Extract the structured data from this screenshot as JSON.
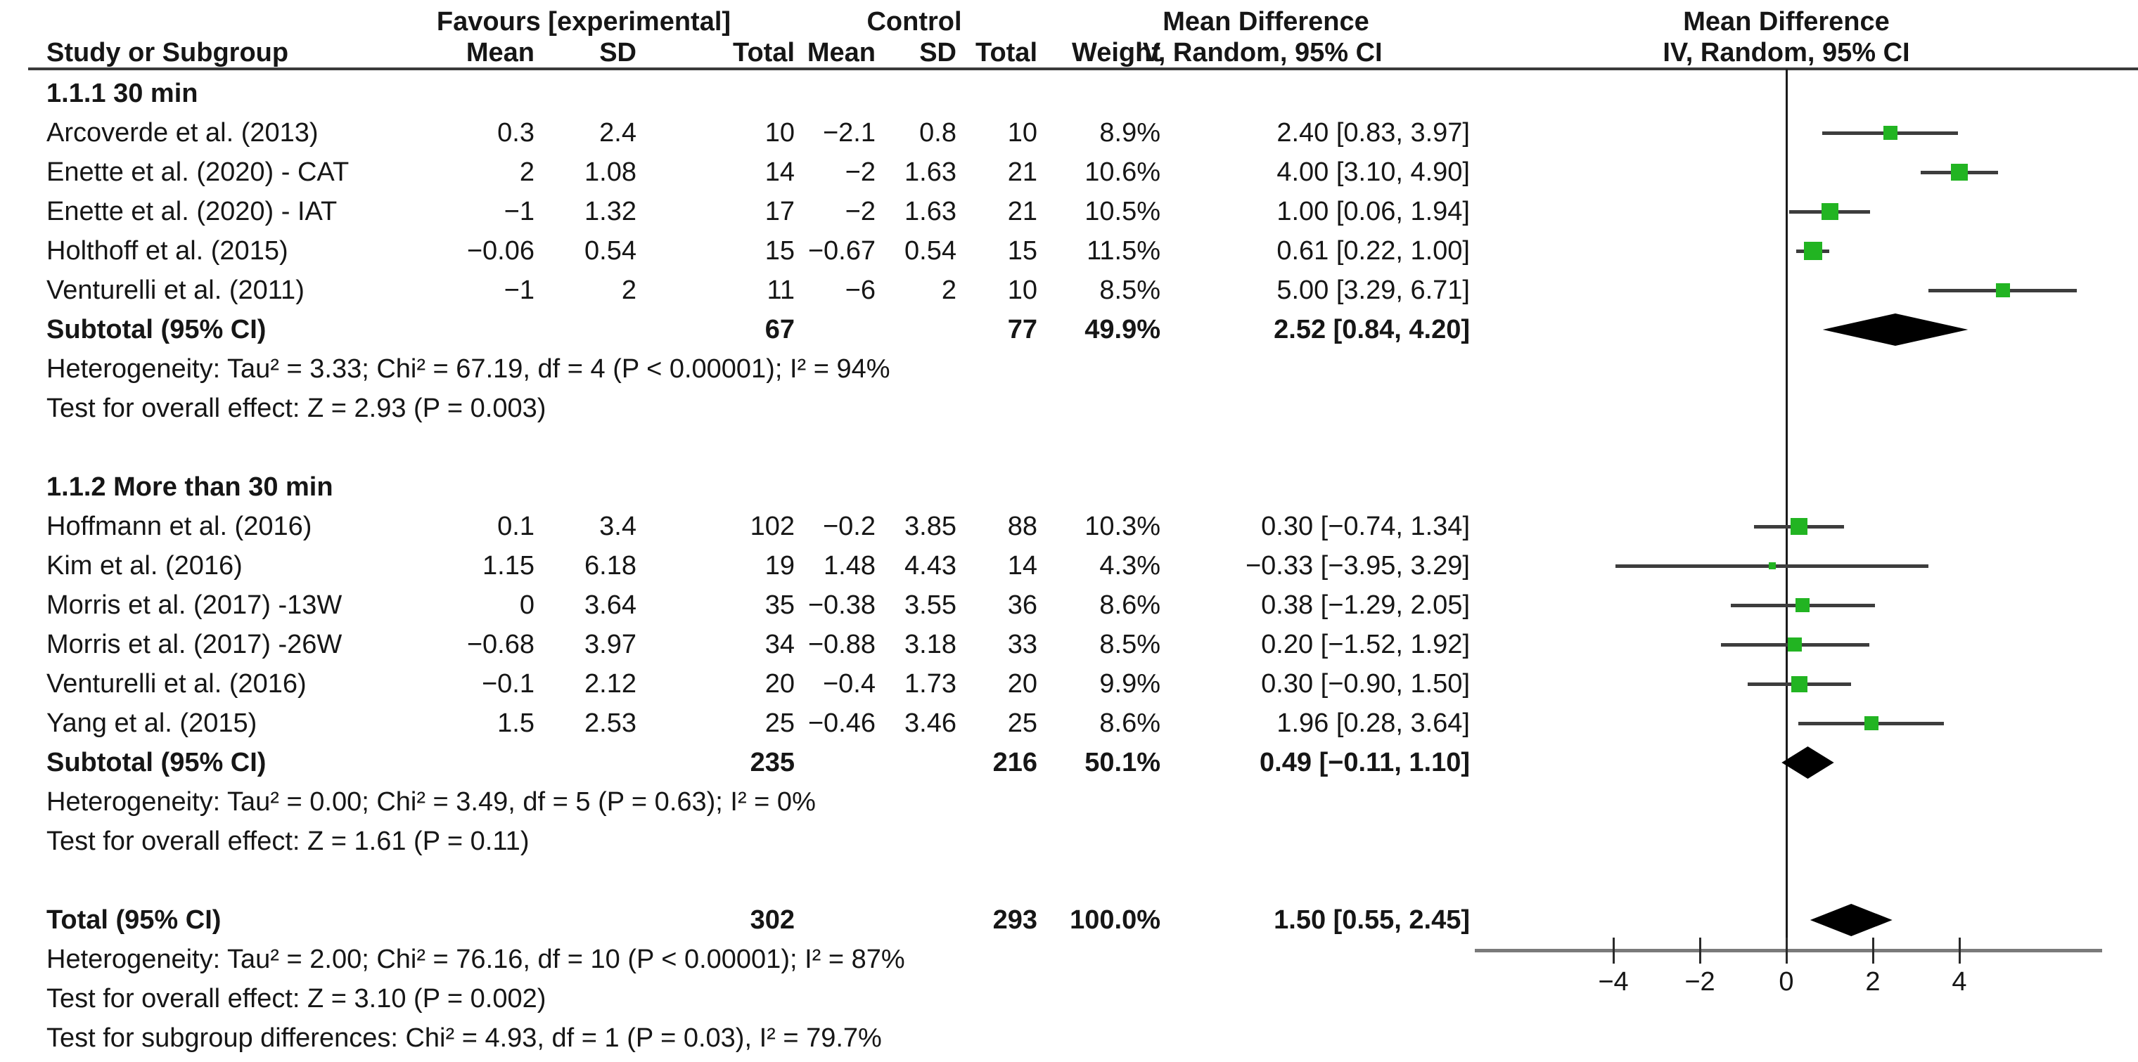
{
  "header": {
    "favours": "Favours [experimental]",
    "control": "Control",
    "md": "Mean Difference",
    "method": "IV, Random, 95% CI",
    "study": "Study or Subgroup",
    "mean": "Mean",
    "sd": "SD",
    "total": "Total",
    "weight": "Weight"
  },
  "chart_data": {
    "type": "scatter",
    "subtype": "forest-plot",
    "effect_measure": "Mean Difference",
    "model": "IV, Random, 95% CI",
    "axis": {
      "min": -7.2,
      "max": 7.3,
      "ticks": [
        -4,
        -2,
        0,
        2,
        4
      ],
      "tick_labels": [
        "−4",
        "−2",
        "0",
        "2",
        "4"
      ]
    },
    "colors": {
      "square": "#22b422",
      "ci_line": "#3d3d3d",
      "diamond": "#000000",
      "zero_line": "#1a1a1a",
      "axis": "#7a7a7a"
    },
    "groups": [
      {
        "title": "1.1.1 30 min",
        "studies": [
          {
            "study": "Arcoverde et al. (2013)",
            "exp_mean": "0.3",
            "exp_sd": "2.4",
            "exp_n": "10",
            "ctl_mean": "−2.1",
            "ctl_sd": "0.8",
            "ctl_n": "10",
            "weight": "8.9%",
            "ci": "2.40 [0.83, 3.97]",
            "est": 2.4,
            "lo": 0.83,
            "hi": 3.97,
            "wt": 8.9
          },
          {
            "study": "Enette et al. (2020) - CAT",
            "exp_mean": "2",
            "exp_sd": "1.08",
            "exp_n": "14",
            "ctl_mean": "−2",
            "ctl_sd": "1.63",
            "ctl_n": "21",
            "weight": "10.6%",
            "ci": "4.00 [3.10, 4.90]",
            "est": 4.0,
            "lo": 3.1,
            "hi": 4.9,
            "wt": 10.6
          },
          {
            "study": "Enette et al. (2020) - IAT",
            "exp_mean": "−1",
            "exp_sd": "1.32",
            "exp_n": "17",
            "ctl_mean": "−2",
            "ctl_sd": "1.63",
            "ctl_n": "21",
            "weight": "10.5%",
            "ci": "1.00 [0.06, 1.94]",
            "est": 1.0,
            "lo": 0.06,
            "hi": 1.94,
            "wt": 10.5
          },
          {
            "study": "Holthoff et al. (2015)",
            "exp_mean": "−0.06",
            "exp_sd": "0.54",
            "exp_n": "15",
            "ctl_mean": "−0.67",
            "ctl_sd": "0.54",
            "ctl_n": "15",
            "weight": "11.5%",
            "ci": "0.61 [0.22, 1.00]",
            "est": 0.61,
            "lo": 0.22,
            "hi": 1.0,
            "wt": 11.5
          },
          {
            "study": "Venturelli et al. (2011)",
            "exp_mean": "−1",
            "exp_sd": "2",
            "exp_n": "11",
            "ctl_mean": "−6",
            "ctl_sd": "2",
            "ctl_n": "10",
            "weight": "8.5%",
            "ci": "5.00 [3.29, 6.71]",
            "est": 5.0,
            "lo": 3.29,
            "hi": 6.71,
            "wt": 8.5
          }
        ],
        "subtotal": {
          "label": "Subtotal (95% CI)",
          "exp_n": "67",
          "ctl_n": "77",
          "weight": "49.9%",
          "ci": "2.52 [0.84, 4.20]",
          "est": 2.52,
          "lo": 0.84,
          "hi": 4.2
        },
        "heterogeneity": "Heterogeneity: Tau² = 3.33; Chi² = 67.19, df = 4 (P < 0.00001); I² = 94%",
        "overall_effect": "Test for overall effect: Z = 2.93 (P = 0.003)"
      },
      {
        "title": "1.1.2 More than 30 min",
        "studies": [
          {
            "study": "Hoffmann et al. (2016)",
            "exp_mean": "0.1",
            "exp_sd": "3.4",
            "exp_n": "102",
            "ctl_mean": "−0.2",
            "ctl_sd": "3.85",
            "ctl_n": "88",
            "weight": "10.3%",
            "ci": "0.30 [−0.74, 1.34]",
            "est": 0.3,
            "lo": -0.74,
            "hi": 1.34,
            "wt": 10.3
          },
          {
            "study": "Kim et al. (2016)",
            "exp_mean": "1.15",
            "exp_sd": "6.18",
            "exp_n": "19",
            "ctl_mean": "1.48",
            "ctl_sd": "4.43",
            "ctl_n": "14",
            "weight": "4.3%",
            "ci": "−0.33 [−3.95, 3.29]",
            "est": -0.33,
            "lo": -3.95,
            "hi": 3.29,
            "wt": 4.3
          },
          {
            "study": "Morris et al. (2017) -13W",
            "exp_mean": "0",
            "exp_sd": "3.64",
            "exp_n": "35",
            "ctl_mean": "−0.38",
            "ctl_sd": "3.55",
            "ctl_n": "36",
            "weight": "8.6%",
            "ci": "0.38 [−1.29, 2.05]",
            "est": 0.38,
            "lo": -1.29,
            "hi": 2.05,
            "wt": 8.6
          },
          {
            "study": "Morris et al. (2017) -26W",
            "exp_mean": "−0.68",
            "exp_sd": "3.97",
            "exp_n": "34",
            "ctl_mean": "−0.88",
            "ctl_sd": "3.18",
            "ctl_n": "33",
            "weight": "8.5%",
            "ci": "0.20 [−1.52, 1.92]",
            "est": 0.2,
            "lo": -1.52,
            "hi": 1.92,
            "wt": 8.5
          },
          {
            "study": "Venturelli et al. (2016)",
            "exp_mean": "−0.1",
            "exp_sd": "2.12",
            "exp_n": "20",
            "ctl_mean": "−0.4",
            "ctl_sd": "1.73",
            "ctl_n": "20",
            "weight": "9.9%",
            "ci": "0.30 [−0.90, 1.50]",
            "est": 0.3,
            "lo": -0.9,
            "hi": 1.5,
            "wt": 9.9
          },
          {
            "study": "Yang et al. (2015)",
            "exp_mean": "1.5",
            "exp_sd": "2.53",
            "exp_n": "25",
            "ctl_mean": "−0.46",
            "ctl_sd": "3.46",
            "ctl_n": "25",
            "weight": "8.6%",
            "ci": "1.96 [0.28, 3.64]",
            "est": 1.96,
            "lo": 0.28,
            "hi": 3.64,
            "wt": 8.6
          }
        ],
        "subtotal": {
          "label": "Subtotal (95% CI)",
          "exp_n": "235",
          "ctl_n": "216",
          "weight": "50.1%",
          "ci": "0.49 [−0.11, 1.10]",
          "est": 0.49,
          "lo": -0.11,
          "hi": 1.1
        },
        "heterogeneity": "Heterogeneity: Tau² = 0.00; Chi² = 3.49, df = 5 (P = 0.63); I² = 0%",
        "overall_effect": "Test for overall effect: Z = 1.61 (P = 0.11)"
      }
    ],
    "total": {
      "label": "Total (95% CI)",
      "exp_n": "302",
      "ctl_n": "293",
      "weight": "100.0%",
      "ci": "1.50 [0.55, 2.45]",
      "est": 1.5,
      "lo": 0.55,
      "hi": 2.45
    },
    "footnotes": [
      "Heterogeneity: Tau² = 2.00; Chi² = 76.16, df = 10 (P < 0.00001); I² = 87%",
      "Test for overall effect: Z = 3.10 (P = 0.002)",
      "Test for subgroup differences: Chi² = 4.93, df = 1 (P = 0.03), I² = 79.7%"
    ]
  }
}
